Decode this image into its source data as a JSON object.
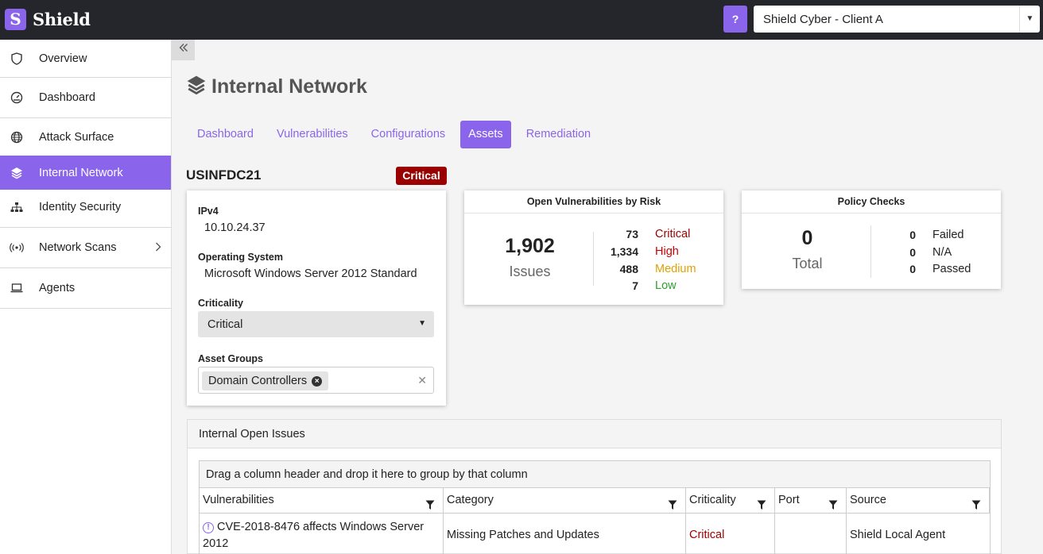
{
  "app": {
    "logo_letter": "S",
    "name": "Shield"
  },
  "topbar": {
    "help_label": "?",
    "client": "Shield Cyber - Client A"
  },
  "sidebar": {
    "items": [
      {
        "label": "Overview",
        "icon": "shield-icon"
      },
      {
        "label": "Dashboard",
        "icon": "gauge-icon"
      },
      {
        "label": "Attack Surface",
        "icon": "globe-icon"
      },
      {
        "label": "Internal Network",
        "icon": "layers-icon",
        "active": true
      },
      {
        "label": "Identity Security",
        "icon": "sitemap-icon"
      },
      {
        "label": "Network Scans",
        "icon": "broadcast-icon",
        "has_children": true
      },
      {
        "label": "Agents",
        "icon": "laptop-icon"
      }
    ],
    "collapse_icon": "double-chevron-left-icon"
  },
  "page": {
    "title": "Internal Network"
  },
  "tabs": [
    "Dashboard",
    "Vulnerabilities",
    "Configurations",
    "Assets",
    "Remediation"
  ],
  "active_tab": "Assets",
  "asset": {
    "hostname": "USINFDC21",
    "badge": "Critical",
    "ipv4_label": "IPv4",
    "ipv4": "10.10.24.37",
    "os_label": "Operating System",
    "os": "Microsoft Windows Server 2012 Standard",
    "criticality_label": "Criticality",
    "criticality": "Critical",
    "groups_label": "Asset Groups",
    "groups": [
      "Domain Controllers"
    ]
  },
  "risk": {
    "title": "Open Vulnerabilities by Risk",
    "total": "1,902",
    "total_label": "Issues",
    "rows": [
      {
        "count": "73",
        "label": "Critical",
        "color": "#9b0000"
      },
      {
        "count": "1,334",
        "label": "High",
        "color": "#cc0000"
      },
      {
        "count": "488",
        "label": "Medium",
        "color": "#e0a100"
      },
      {
        "count": "7",
        "label": "Low",
        "color": "#2e9e2e"
      }
    ]
  },
  "policy": {
    "title": "Policy Checks",
    "total": "0",
    "total_label": "Total",
    "rows": [
      {
        "count": "0",
        "label": "Failed"
      },
      {
        "count": "0",
        "label": "N/A"
      },
      {
        "count": "0",
        "label": "Passed"
      }
    ]
  },
  "issues": {
    "title": "Internal Open Issues",
    "group_hint": "Drag a column header and drop it here to group by that column",
    "columns": [
      "Vulnerabilities",
      "Category",
      "Criticality",
      "Port",
      "Source"
    ],
    "rows": [
      {
        "vulnerability": "CVE-2018-8476 affects Windows Server 2012",
        "category": "Missing Patches and Updates",
        "criticality": "Critical",
        "port": "",
        "source": "Shield Local Agent"
      }
    ]
  },
  "colors": {
    "accent": "#8b64ec",
    "critical": "#9b0000",
    "topbar": "#24262b"
  }
}
